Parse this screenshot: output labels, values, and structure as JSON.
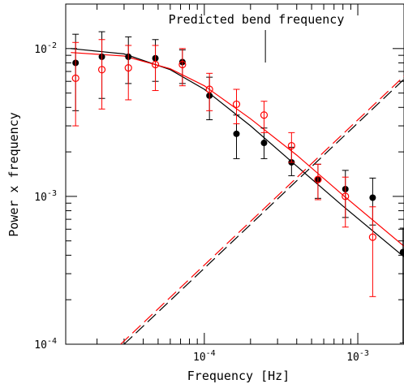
{
  "chart_data": {
    "type": "scatter",
    "title": "",
    "xlabel": "Frequency [Hz]",
    "ylabel": "Power x frequency",
    "xscale": "log",
    "yscale": "log",
    "xlim": [
      1.25e-05,
      0.002
    ],
    "ylim": [
      0.0001,
      0.02
    ],
    "x_tick_labels": [
      {
        "value": 0.0001,
        "mantissa": "10",
        "exp": "-4"
      },
      {
        "value": 0.001,
        "mantissa": "10",
        "exp": "-3"
      }
    ],
    "y_tick_labels": [
      {
        "value": 0.0001,
        "mantissa": "10",
        "exp": "-4"
      },
      {
        "value": 0.001,
        "mantissa": "10",
        "exp": "-3"
      },
      {
        "value": 0.01,
        "mantissa": "10",
        "exp": "-2"
      }
    ],
    "annotation": {
      "text": "Predicted  bend frequency",
      "x": 0.00025
    },
    "series": [
      {
        "color": "#000000",
        "marker": "filled-circle",
        "points": [
          {
            "x": 1.45e-05,
            "y": 0.008,
            "lo": 0.0038,
            "hi": 0.0125
          },
          {
            "x": 2.15e-05,
            "y": 0.0088,
            "lo": 0.0046,
            "hi": 0.013
          },
          {
            "x": 3.2e-05,
            "y": 0.0088,
            "lo": 0.0058,
            "hi": 0.012
          },
          {
            "x": 4.8e-05,
            "y": 0.0086,
            "lo": 0.006,
            "hi": 0.0115
          },
          {
            "x": 7.2e-05,
            "y": 0.0081,
            "lo": 0.0058,
            "hi": 0.0098
          },
          {
            "x": 0.000108,
            "y": 0.0048,
            "lo": 0.0033,
            "hi": 0.0064
          },
          {
            "x": 0.000162,
            "y": 0.00265,
            "lo": 0.0018,
            "hi": 0.00355
          },
          {
            "x": 0.000245,
            "y": 0.0023,
            "lo": 0.0018,
            "hi": 0.0029
          },
          {
            "x": 0.00037,
            "y": 0.0017,
            "lo": 0.00138,
            "hi": 0.00215
          },
          {
            "x": 0.00055,
            "y": 0.0013,
            "lo": 0.00097,
            "hi": 0.00165
          },
          {
            "x": 0.00083,
            "y": 0.00112,
            "lo": 0.00072,
            "hi": 0.0015
          },
          {
            "x": 0.00125,
            "y": 0.00098,
            "lo": 0.00064,
            "hi": 0.00133
          },
          {
            "x": 0.00197,
            "y": 0.00042,
            "lo": 0.000102,
            "hi": 0.00061
          }
        ],
        "model": [
          [
            1.35e-05,
            0.01
          ],
          [
            3e-05,
            0.0092
          ],
          [
            6e-05,
            0.0072
          ],
          [
            0.0001,
            0.0053
          ],
          [
            0.0002,
            0.003
          ],
          [
            0.0004,
            0.0016
          ],
          [
            0.0008,
            0.00086
          ],
          [
            0.002,
            0.00039
          ]
        ],
        "component": [
          [
            3e-05,
            0.0001
          ],
          [
            0.002,
            0.0062
          ]
        ]
      },
      {
        "color": "#ff0000",
        "marker": "open-circle",
        "points": [
          {
            "x": 1.45e-05,
            "y": 0.0063,
            "lo": 0.003,
            "hi": 0.011
          },
          {
            "x": 2.15e-05,
            "y": 0.0072,
            "lo": 0.0039,
            "hi": 0.0115
          },
          {
            "x": 3.2e-05,
            "y": 0.0074,
            "lo": 0.0045,
            "hi": 0.0105
          },
          {
            "x": 4.8e-05,
            "y": 0.0078,
            "lo": 0.0052,
            "hi": 0.0105
          },
          {
            "x": 7.2e-05,
            "y": 0.0078,
            "lo": 0.0056,
            "hi": 0.01
          },
          {
            "x": 0.000108,
            "y": 0.0053,
            "lo": 0.0038,
            "hi": 0.0068
          },
          {
            "x": 0.000162,
            "y": 0.0042,
            "lo": 0.0031,
            "hi": 0.0053
          },
          {
            "x": 0.000245,
            "y": 0.00355,
            "lo": 0.0027,
            "hi": 0.0044
          },
          {
            "x": 0.00037,
            "y": 0.0022,
            "lo": 0.0017,
            "hi": 0.0027
          },
          {
            "x": 0.00055,
            "y": 0.0013,
            "lo": 0.00095,
            "hi": 0.00165
          },
          {
            "x": 0.00083,
            "y": 0.001,
            "lo": 0.00062,
            "hi": 0.00135
          },
          {
            "x": 0.00125,
            "y": 0.00053,
            "lo": 0.00021,
            "hi": 0.00085
          }
        ],
        "model": [
          [
            1.35e-05,
            0.0094
          ],
          [
            3e-05,
            0.0089
          ],
          [
            6e-05,
            0.0073
          ],
          [
            0.0001,
            0.0056
          ],
          [
            0.0002,
            0.00335
          ],
          [
            0.0004,
            0.0019
          ],
          [
            0.0008,
            0.00102
          ],
          [
            0.002,
            0.00046
          ]
        ],
        "component": [
          [
            2.85e-05,
            0.0001
          ],
          [
            0.002,
            0.0065
          ]
        ]
      }
    ]
  }
}
